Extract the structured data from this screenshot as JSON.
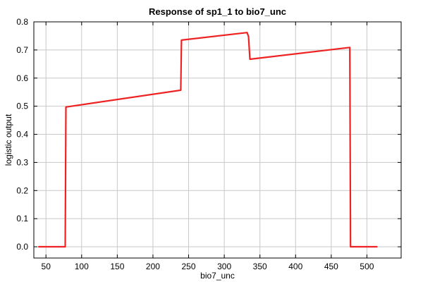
{
  "chart_data": {
    "type": "line",
    "title": "Response of sp1_1 to bio7_unc",
    "xlabel": "bio7_unc",
    "ylabel": "logistic output",
    "xlim": [
      33,
      548
    ],
    "ylim": [
      -0.04,
      0.8
    ],
    "xticks": [
      50,
      100,
      150,
      200,
      250,
      300,
      350,
      400,
      450,
      500
    ],
    "yticks": [
      0.0,
      0.1,
      0.2,
      0.3,
      0.4,
      0.5,
      0.6,
      0.7,
      0.8
    ],
    "xtick_labels": [
      "50",
      "100",
      "150",
      "200",
      "250",
      "300",
      "350",
      "400",
      "450",
      "500"
    ],
    "ytick_labels": [
      "0.0",
      "0.1",
      "0.2",
      "0.3",
      "0.4",
      "0.5",
      "0.6",
      "0.7",
      "0.8"
    ],
    "grid": true,
    "series": [
      {
        "color": "#ee2222",
        "x": [
          40,
          77,
          78,
          239,
          240,
          332,
          334,
          336,
          476,
          477,
          514
        ],
        "y": [
          0.0,
          0.0,
          0.497,
          0.557,
          0.735,
          0.762,
          0.748,
          0.667,
          0.709,
          0.0,
          0.0
        ]
      }
    ]
  }
}
